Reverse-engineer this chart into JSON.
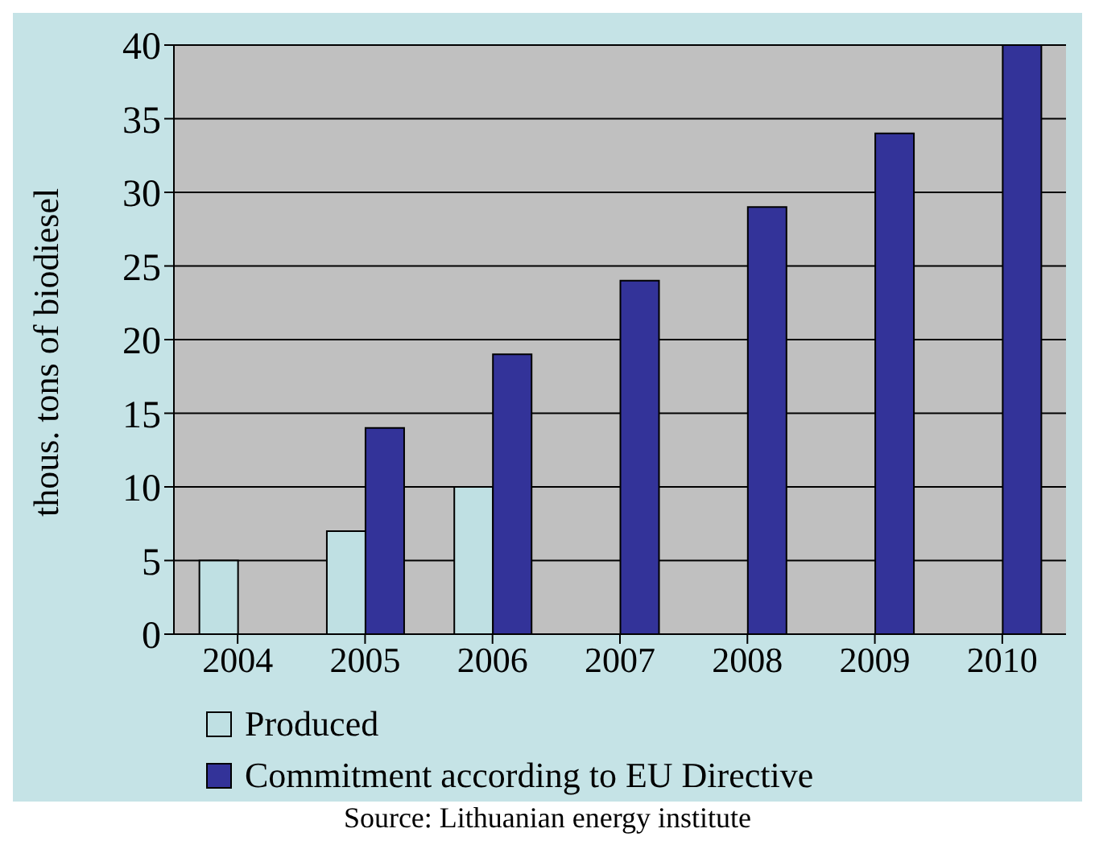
{
  "chart_data": {
    "type": "bar",
    "ylabel": "thous. tons of biodiesel",
    "categories": [
      "2004",
      "2005",
      "2006",
      "2007",
      "2008",
      "2009",
      "2010"
    ],
    "series": [
      {
        "name": "Produced",
        "color": "#bfe0e3",
        "values": [
          5,
          7,
          10,
          null,
          null,
          null,
          null
        ]
      },
      {
        "name": "Commitment according to EU Directive",
        "color": "#333399",
        "values": [
          null,
          14,
          19,
          24,
          29,
          34,
          40
        ]
      }
    ],
    "ylim": [
      0,
      40
    ],
    "yticks": [
      0,
      5,
      10,
      15,
      20,
      25,
      30,
      35,
      40
    ],
    "grid": "y",
    "legend": "bottom",
    "annotations": [
      "Source: Lithuanian energy institute"
    ]
  }
}
